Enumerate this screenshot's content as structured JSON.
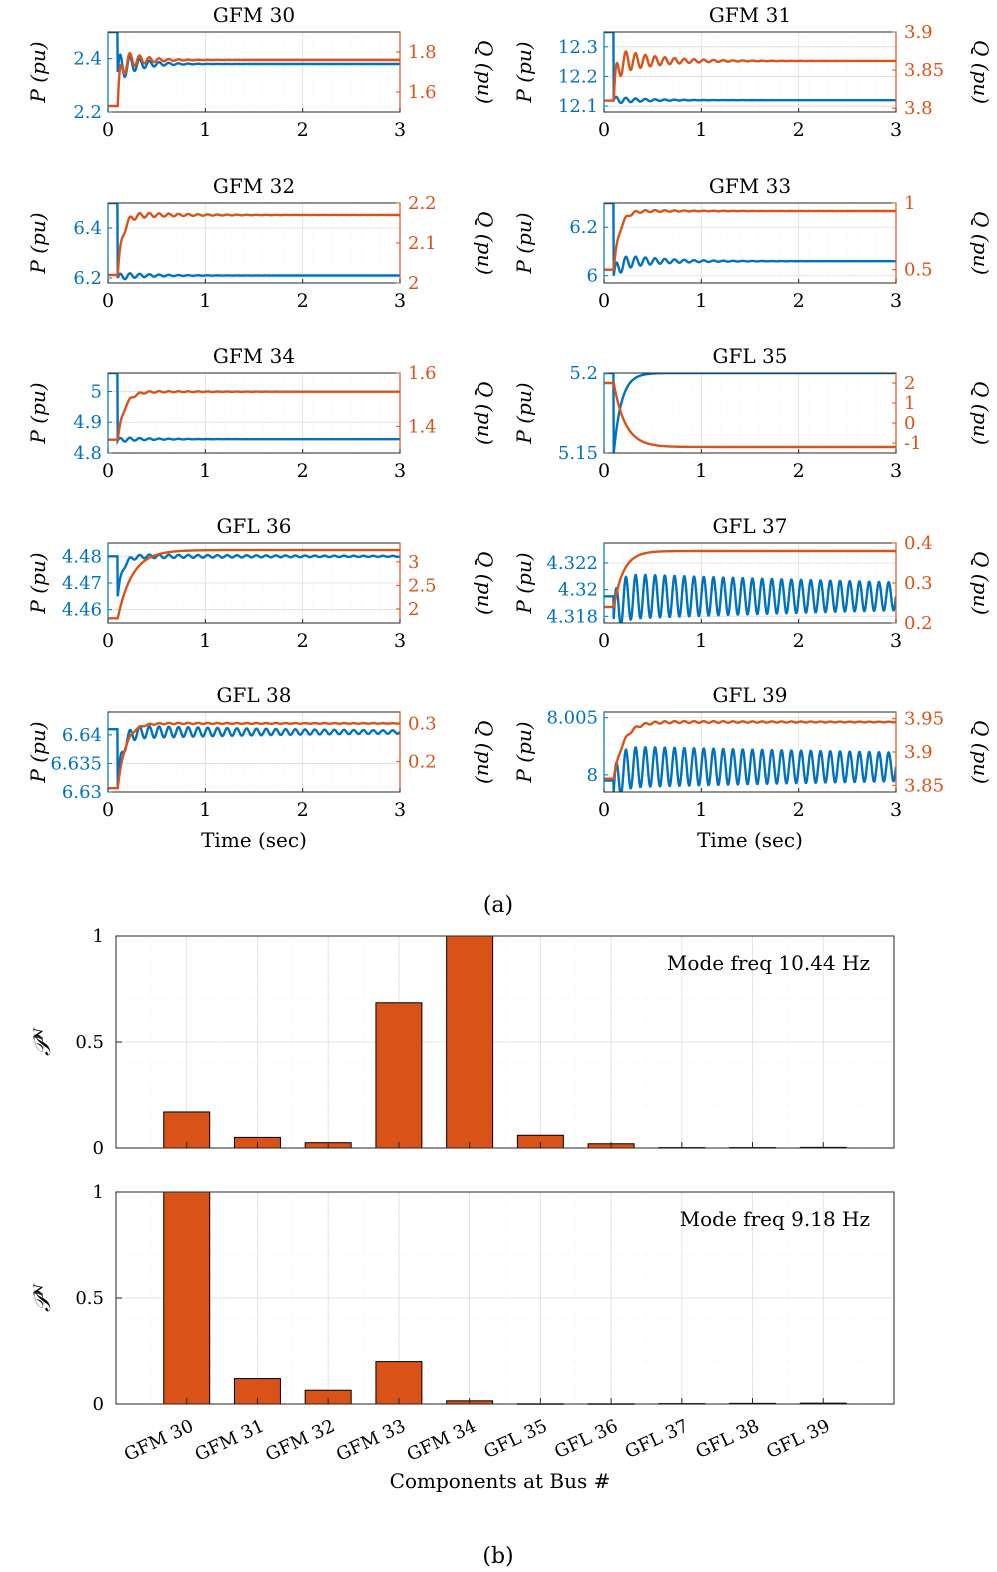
{
  "figure_labels": {
    "a": "(a)",
    "b": "(b)"
  },
  "colors": {
    "p_series": "#0072BD",
    "q_series": "#D95319",
    "bar_fill": "#D95319",
    "grid": "#dddddd",
    "axis": "#262626"
  },
  "chart_data": [
    {
      "type": "line",
      "title": "GFM 30",
      "xlabel": "",
      "ylabel_left": "P (pu)",
      "ylabel_right": "Q (pu)",
      "xlim": [
        0,
        3
      ],
      "xticks": [
        0,
        1,
        2,
        3
      ],
      "ylim_left": [
        2.2,
        2.5
      ],
      "yticks_left": [
        2.2,
        2.4
      ],
      "ylim_right": [
        1.5,
        1.9
      ],
      "yticks_right": [
        1.6,
        1.8
      ],
      "series": [
        {
          "name": "P",
          "axis": "left",
          "dynamics": {
            "pre": 2.5,
            "min": 2.35,
            "base": 2.38,
            "amp": 0.06,
            "decay": 0.2,
            "freq": 10,
            "rise": 0.05
          }
        },
        {
          "name": "Q",
          "axis": "right",
          "dynamics": {
            "pre": 1.53,
            "min": 1.53,
            "base": 1.76,
            "amp": 0.07,
            "decay": 0.2,
            "freq": 10,
            "rise": 0.03
          }
        }
      ]
    },
    {
      "type": "line",
      "title": "GFM 31",
      "xlabel": "",
      "ylabel_left": "P (pu)",
      "ylabel_right": "Q (pu)",
      "xlim": [
        0,
        3
      ],
      "xticks": [
        0,
        1,
        2,
        3
      ],
      "ylim_left": [
        12.08,
        12.35
      ],
      "yticks_left": [
        12.1,
        12.2,
        12.3
      ],
      "ylim_right": [
        3.795,
        3.9
      ],
      "yticks_right": [
        3.8,
        3.85,
        3.9
      ],
      "series": [
        {
          "name": "P",
          "axis": "left",
          "dynamics": {
            "pre": 12.35,
            "min": 12.12,
            "base": 12.12,
            "amp": 0.012,
            "decay": 0.3,
            "freq": 10,
            "rise": 0.06
          }
        },
        {
          "name": "Q",
          "axis": "right",
          "dynamics": {
            "pre": 3.81,
            "min": 3.81,
            "base": 3.862,
            "amp": 0.018,
            "decay": 0.4,
            "freq": 10,
            "rise": 0.03
          }
        }
      ]
    },
    {
      "type": "line",
      "title": "GFM 32",
      "xlabel": "",
      "ylabel_left": "P (pu)",
      "ylabel_right": "Q (pu)",
      "xlim": [
        0,
        3
      ],
      "xticks": [
        0,
        1,
        2,
        3
      ],
      "ylim_left": [
        6.18,
        6.5
      ],
      "yticks_left": [
        6.2,
        6.4
      ],
      "ylim_right": [
        2.0,
        2.2
      ],
      "yticks_right": [
        2,
        2.1,
        2.2
      ],
      "series": [
        {
          "name": "P",
          "axis": "left",
          "dynamics": {
            "pre": 6.5,
            "min": 6.2,
            "base": 6.21,
            "amp": 0.015,
            "decay": 0.3,
            "freq": 10,
            "rise": 0.06
          }
        },
        {
          "name": "Q",
          "axis": "right",
          "dynamics": {
            "pre": 2.02,
            "min": 2.02,
            "base": 2.17,
            "amp": 0.01,
            "decay": 0.5,
            "freq": 10,
            "rise": 0.05
          }
        }
      ]
    },
    {
      "type": "line",
      "title": "GFM 33",
      "xlabel": "",
      "ylabel_left": "P (pu)",
      "ylabel_right": "Q (pu)",
      "xlim": [
        0,
        3
      ],
      "xticks": [
        0,
        1,
        2,
        3
      ],
      "ylim_left": [
        5.97,
        6.3
      ],
      "yticks_left": [
        6,
        6.2
      ],
      "ylim_right": [
        0.4,
        1.0
      ],
      "yticks_right": [
        0.5,
        1
      ],
      "series": [
        {
          "name": "P",
          "axis": "left",
          "dynamics": {
            "pre": 6.3,
            "min": 6.0,
            "base": 6.06,
            "amp": 0.035,
            "decay": 0.4,
            "freq": 10,
            "rise": 0.06
          }
        },
        {
          "name": "Q",
          "axis": "right",
          "dynamics": {
            "pre": 0.5,
            "min": 0.5,
            "base": 0.94,
            "amp": 0.015,
            "decay": 0.5,
            "freq": 10,
            "rise": 0.06
          }
        }
      ]
    },
    {
      "type": "line",
      "title": "GFM 34",
      "xlabel": "",
      "ylabel_left": "P (pu)",
      "ylabel_right": "Q (pu)",
      "xlim": [
        0,
        3
      ],
      "xticks": [
        0,
        1,
        2,
        3
      ],
      "ylim_left": [
        4.8,
        5.06
      ],
      "yticks_left": [
        4.8,
        4.9,
        5
      ],
      "ylim_right": [
        1.3,
        1.6
      ],
      "yticks_right": [
        1.4,
        1.6
      ],
      "series": [
        {
          "name": "P",
          "axis": "left",
          "dynamics": {
            "pre": 5.06,
            "min": 4.84,
            "base": 4.845,
            "amp": 0.008,
            "decay": 0.3,
            "freq": 10,
            "rise": 0.06
          }
        },
        {
          "name": "Q",
          "axis": "right",
          "dynamics": {
            "pre": 1.35,
            "min": 1.35,
            "base": 1.53,
            "amp": 0.006,
            "decay": 0.5,
            "freq": 10,
            "rise": 0.07
          }
        }
      ]
    },
    {
      "type": "line",
      "title": "GFL 35",
      "xlabel": "",
      "ylabel_left": "P (pu)",
      "ylabel_right": "Q (pu)",
      "xlim": [
        0,
        3
      ],
      "xticks": [
        0,
        1,
        2,
        3
      ],
      "ylim_left": [
        5.15,
        5.2
      ],
      "yticks_left": [
        5.15,
        5.2
      ],
      "ylim_right": [
        -1.5,
        2.5
      ],
      "yticks_right": [
        -1,
        0,
        1,
        2
      ],
      "series": [
        {
          "name": "P",
          "axis": "left",
          "dynamics": {
            "pre": 5.2,
            "min": 5.15,
            "base": 5.2,
            "amp": 0,
            "decay": 1,
            "freq": 10,
            "rise": 0.08
          }
        },
        {
          "name": "Q",
          "axis": "right",
          "dynamics": {
            "pre": 2.0,
            "min": 2.0,
            "base": -1.2,
            "amp": 0,
            "decay": 1,
            "freq": 10,
            "rise": 0.12
          }
        }
      ]
    },
    {
      "type": "line",
      "title": "GFL 36",
      "xlabel": "",
      "ylabel_left": "P (pu)",
      "ylabel_right": "Q (pu)",
      "xlim": [
        0,
        3
      ],
      "xticks": [
        0,
        1,
        2,
        3
      ],
      "ylim_left": [
        4.455,
        4.485
      ],
      "yticks_left": [
        4.46,
        4.47,
        4.48
      ],
      "ylim_right": [
        1.7,
        3.4
      ],
      "yticks_right": [
        2,
        2.5,
        3
      ],
      "series": [
        {
          "name": "P",
          "axis": "left",
          "dynamics": {
            "pre": 4.48,
            "min": 4.465,
            "base": 4.48,
            "amp": 0.0008,
            "decay": 2,
            "freq": 10,
            "rise": 0.05
          }
        },
        {
          "name": "Q",
          "axis": "right",
          "dynamics": {
            "pre": 1.8,
            "min": 1.8,
            "base": 3.25,
            "amp": 0,
            "decay": 1,
            "freq": 10,
            "rise": 0.15
          }
        }
      ]
    },
    {
      "type": "line",
      "title": "GFL 37",
      "xlabel": "",
      "ylabel_left": "P (pu)",
      "ylabel_right": "Q (pu)",
      "xlim": [
        0,
        3
      ],
      "xticks": [
        0,
        1,
        2,
        3
      ],
      "ylim_left": [
        4.3175,
        4.3235
      ],
      "yticks_left": [
        4.318,
        4.32,
        4.322
      ],
      "ylim_right": [
        0.2,
        0.4
      ],
      "yticks_right": [
        0.2,
        0.3,
        0.4
      ],
      "series": [
        {
          "name": "P",
          "axis": "left",
          "dynamics": {
            "pre": 4.3195,
            "min": 4.3178,
            "base": 4.3195,
            "amp": 0.0017,
            "decay": 6,
            "freq": 10,
            "rise": 0.06
          }
        },
        {
          "name": "Q",
          "axis": "right",
          "dynamics": {
            "pre": 0.24,
            "min": 0.24,
            "base": 0.38,
            "amp": 0,
            "decay": 1,
            "freq": 10,
            "rise": 0.1
          }
        }
      ]
    },
    {
      "type": "line",
      "title": "GFL 38",
      "xlabel": "Time (sec)",
      "ylabel_left": "P (pu)",
      "ylabel_right": "Q (pu)",
      "xlim": [
        0,
        3
      ],
      "xticks": [
        0,
        1,
        2,
        3
      ],
      "ylim_left": [
        6.63,
        6.644
      ],
      "yticks_left": [
        6.63,
        6.635,
        6.64
      ],
      "ylim_right": [
        0.12,
        0.33
      ],
      "yticks_right": [
        0.2,
        0.3
      ],
      "series": [
        {
          "name": "P",
          "axis": "left",
          "dynamics": {
            "pre": 6.641,
            "min": 6.631,
            "base": 6.6405,
            "amp": 0.0012,
            "decay": 2,
            "freq": 10,
            "rise": 0.05
          }
        },
        {
          "name": "Q",
          "axis": "right",
          "dynamics": {
            "pre": 0.13,
            "min": 0.13,
            "base": 0.3,
            "amp": 0.002,
            "decay": 2,
            "freq": 10,
            "rise": 0.08
          }
        }
      ]
    },
    {
      "type": "line",
      "title": "GFL 39",
      "xlabel": "Time (sec)",
      "ylabel_left": "P (pu)",
      "ylabel_right": "Q (pu)",
      "xlim": [
        0,
        3
      ],
      "xticks": [
        0,
        1,
        2,
        3
      ],
      "ylim_left": [
        7.9985,
        8.0055
      ],
      "yticks_left": [
        8,
        8.005
      ],
      "ylim_right": [
        3.84,
        3.96
      ],
      "yticks_right": [
        3.85,
        3.9,
        3.95
      ],
      "series": [
        {
          "name": "P",
          "axis": "left",
          "dynamics": {
            "pre": 7.9995,
            "min": 7.9985,
            "base": 8.0007,
            "amp": 0.0018,
            "decay": 8,
            "freq": 10,
            "rise": 0.06
          }
        },
        {
          "name": "Q",
          "axis": "right",
          "dynamics": {
            "pre": 3.86,
            "min": 3.86,
            "base": 3.945,
            "amp": 0.002,
            "decay": 2,
            "freq": 10,
            "rise": 0.1
          }
        }
      ]
    },
    {
      "type": "bar",
      "title": "",
      "annotation": "Mode freq 10.44 Hz",
      "ylabel": "𝒫ᴺ",
      "ylim": [
        0,
        1
      ],
      "yticks": [
        0,
        0.5,
        1
      ],
      "categories": [
        "GFM 30",
        "GFM 31",
        "GFM 32",
        "GFM 33",
        "GFM 34",
        "GFL 35",
        "GFL 36",
        "GFL 37",
        "GFL 38",
        "GFL 39"
      ],
      "values": [
        0.17,
        0.05,
        0.025,
        0.685,
        1.0,
        0.06,
        0.02,
        0.002,
        0.002,
        0.003
      ]
    },
    {
      "type": "bar",
      "title": "",
      "annotation": "Mode freq 9.18 Hz",
      "ylabel": "𝒫ᴺ",
      "xlabel": "Components at Bus #",
      "ylim": [
        0,
        1
      ],
      "yticks": [
        0,
        0.5,
        1
      ],
      "categories": [
        "GFM 30",
        "GFM 31",
        "GFM 32",
        "GFM 33",
        "GFM 34",
        "GFL 35",
        "GFL 36",
        "GFL 37",
        "GFL 38",
        "GFL 39"
      ],
      "values": [
        1.0,
        0.12,
        0.065,
        0.2,
        0.015,
        0.001,
        0.001,
        0.002,
        0.003,
        0.004
      ]
    }
  ]
}
